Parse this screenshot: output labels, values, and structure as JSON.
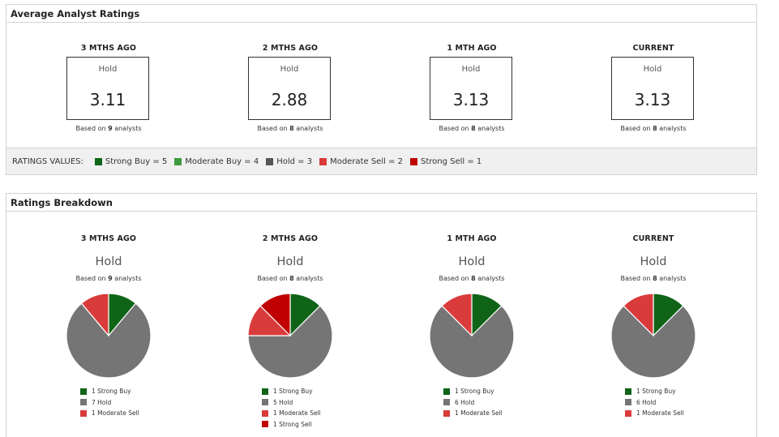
{
  "colors": {
    "strong_buy": "#0f6418",
    "moderate_buy": "#3c9a3c",
    "hold": "#757575",
    "moderate_sell": "#d93b3b",
    "strong_sell": "#c00000"
  },
  "avg": {
    "title": "Average Analyst Ratings",
    "columns": [
      {
        "period": "3 MTHS AGO",
        "label": "Hold",
        "value": "3.11",
        "based_pre": "Based on ",
        "count": "9",
        "based_post": " analysts"
      },
      {
        "period": "2 MTHS AGO",
        "label": "Hold",
        "value": "2.88",
        "based_pre": "Based on ",
        "count": "8",
        "based_post": " analysts"
      },
      {
        "period": "1 MTH AGO",
        "label": "Hold",
        "value": "3.13",
        "based_pre": "Based on ",
        "count": "8",
        "based_post": " analysts"
      },
      {
        "period": "CURRENT",
        "label": "Hold",
        "value": "3.13",
        "based_pre": "Based on ",
        "count": "8",
        "based_post": " analysts"
      }
    ],
    "values_label": "RATINGS VALUES:",
    "values": [
      {
        "text": "Strong Buy = 5",
        "color": "#0f6418"
      },
      {
        "text": "Moderate Buy = 4",
        "color": "#3c9a3c"
      },
      {
        "text": "Hold = 3",
        "color": "#555555"
      },
      {
        "text": "Moderate Sell = 2",
        "color": "#d93b3b"
      },
      {
        "text": "Strong Sell = 1",
        "color": "#c00000"
      }
    ]
  },
  "breakdown": {
    "title": "Ratings Breakdown",
    "columns": [
      {
        "period": "3 MTHS AGO",
        "label": "Hold",
        "based_pre": "Based on ",
        "count": "9",
        "based_post": " analysts",
        "legend": [
          "1 Strong Buy",
          "7 Hold",
          "1 Moderate Sell"
        ]
      },
      {
        "period": "2 MTHS AGO",
        "label": "Hold",
        "based_pre": "Based on ",
        "count": "8",
        "based_post": " analysts",
        "legend": [
          "1 Strong Buy",
          "5 Hold",
          "1 Moderate Sell",
          "1 Strong Sell"
        ]
      },
      {
        "period": "1 MTH AGO",
        "label": "Hold",
        "based_pre": "Based on ",
        "count": "8",
        "based_post": " analysts",
        "legend": [
          "1 Strong Buy",
          "6 Hold",
          "1 Moderate Sell"
        ]
      },
      {
        "period": "CURRENT",
        "label": "Hold",
        "based_pre": "Based on ",
        "count": "8",
        "based_post": " analysts",
        "legend": [
          "1 Strong Buy",
          "6 Hold",
          "1 Moderate Sell"
        ]
      }
    ]
  },
  "chart_data": [
    {
      "type": "pie",
      "categories": [
        "Strong Buy",
        "Hold",
        "Moderate Sell"
      ],
      "values": [
        1,
        7,
        1
      ]
    },
    {
      "type": "pie",
      "categories": [
        "Strong Buy",
        "Hold",
        "Moderate Sell",
        "Strong Sell"
      ],
      "values": [
        1,
        5,
        1,
        1
      ]
    },
    {
      "type": "pie",
      "categories": [
        "Strong Buy",
        "Hold",
        "Moderate Sell"
      ],
      "values": [
        1,
        6,
        1
      ]
    },
    {
      "type": "pie",
      "categories": [
        "Strong Buy",
        "Hold",
        "Moderate Sell"
      ],
      "values": [
        1,
        6,
        1
      ]
    }
  ]
}
